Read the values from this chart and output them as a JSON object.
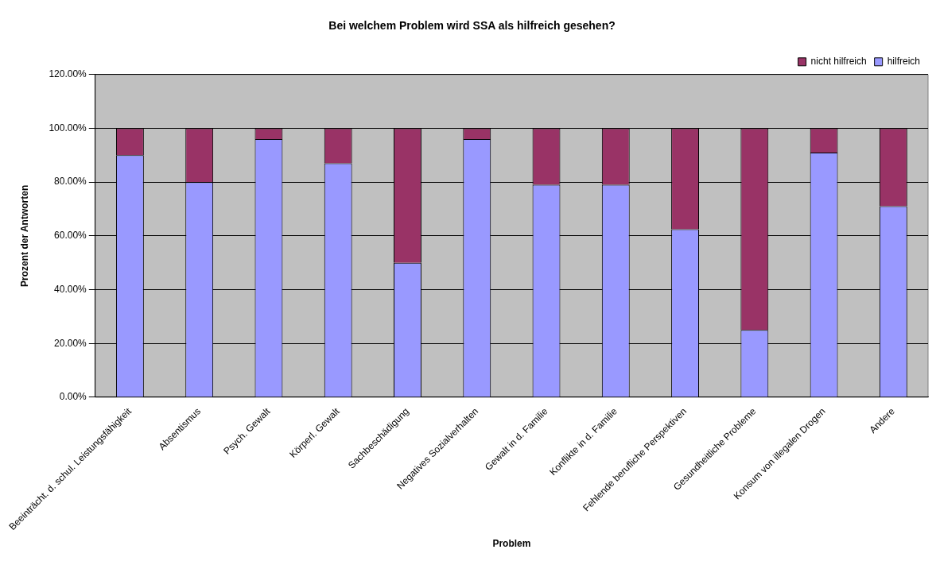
{
  "chart_data": {
    "type": "bar",
    "title": "Bei welchem Problem wird SSA als hilfreich gesehen?",
    "xlabel": "Problem",
    "ylabel": "Prozent der Antworten",
    "categories": [
      "Beeinträcht. d. schul. Leistungsfähigkeit",
      "Absentismus",
      "Psych. Gewalt",
      "Körperl. Gewalt",
      "Sachbeschädigung",
      "Negatives Sozialverhalten",
      "Gewalt in d. Familie",
      "Konflikte in d. Familie",
      "Fehlende berufliche Perspektiven",
      "Gesundheitliche Probleme",
      "Konsum von illegalen Drogen",
      "Andere"
    ],
    "series": [
      {
        "name": "hilfreich",
        "color": "#9999ff",
        "values": [
          90,
          80,
          96,
          87,
          50,
          96,
          79,
          79,
          62.5,
          25,
          91,
          71
        ]
      },
      {
        "name": "nicht hilfreich",
        "color": "#993366",
        "values": [
          10,
          20,
          4,
          13,
          50,
          4,
          21,
          21,
          37.5,
          75,
          9,
          29
        ]
      }
    ],
    "stacked": true,
    "ylim": [
      0,
      120
    ],
    "yticks": [
      {
        "value": 0,
        "label": "0.00%"
      },
      {
        "value": 20,
        "label": "20.00%"
      },
      {
        "value": 40,
        "label": "40.00%"
      },
      {
        "value": 60,
        "label": "60.00%"
      },
      {
        "value": 80,
        "label": "80.00%"
      },
      {
        "value": 100,
        "label": "100.00%"
      },
      {
        "value": 120,
        "label": "120.00%"
      }
    ],
    "grid": "y",
    "legend": "top right"
  }
}
